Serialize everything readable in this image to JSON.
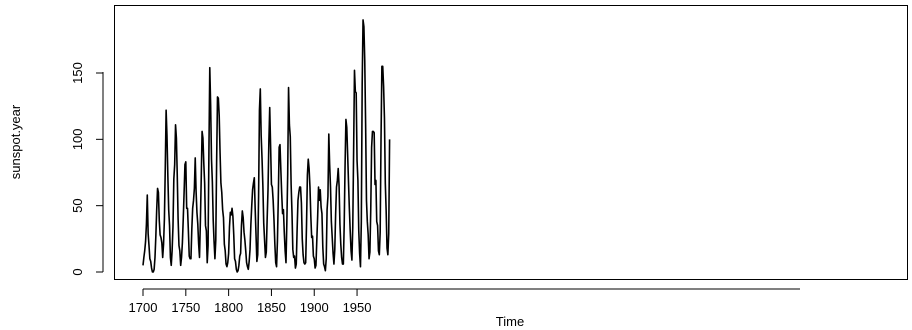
{
  "chart_data": {
    "type": "line",
    "title": "",
    "xlabel": "Time",
    "ylabel": "sunspot.year",
    "xlim": [
      1700,
      1988
    ],
    "ylim": [
      0,
      190
    ],
    "xticks": [
      1700,
      1750,
      1800,
      1850,
      1900,
      1950
    ],
    "yticks": [
      0,
      50,
      100,
      150
    ],
    "grid": false,
    "series": [
      {
        "x_start": 1700,
        "x_step": 1,
        "values": [
          5,
          11,
          16,
          23,
          36,
          58,
          29,
          20,
          10,
          8,
          3,
          0,
          0,
          2,
          11,
          27,
          47,
          63,
          60,
          39,
          28,
          26,
          22,
          11,
          21,
          40,
          78,
          122,
          103,
          73,
          47,
          35,
          11,
          5,
          16,
          34,
          70,
          81,
          111,
          101,
          73,
          40,
          20,
          16,
          5,
          11,
          22,
          40,
          60,
          81,
          83,
          48,
          48,
          31,
          12,
          10,
          10,
          32,
          48,
          54,
          63,
          86,
          61,
          45,
          36,
          21,
          11,
          38,
          70,
          106,
          101,
          82,
          67,
          35,
          31,
          7,
          20,
          92,
          154,
          126,
          85,
          68,
          39,
          23,
          10,
          24,
          83,
          132,
          131,
          118,
          90,
          67,
          60,
          47,
          41,
          21,
          16,
          6,
          4,
          7,
          14,
          34,
          45,
          43,
          48,
          42,
          28,
          10,
          8,
          2,
          0,
          1,
          5,
          12,
          14,
          35,
          46,
          41,
          30,
          24,
          16,
          7,
          4,
          2,
          8,
          17,
          36,
          50,
          62,
          67,
          71,
          48,
          28,
          8,
          13,
          57,
          122,
          138,
          103,
          86,
          65,
          37,
          24,
          11,
          15,
          40,
          62,
          98,
          124,
          96,
          66,
          64,
          54,
          39,
          21,
          7,
          4,
          23,
          55,
          94,
          96,
          77,
          59,
          44,
          47,
          30,
          16,
          7,
          37,
          74,
          139,
          111,
          102,
          66,
          45,
          17,
          11,
          12,
          3,
          6,
          32,
          54,
          60,
          64,
          64,
          52,
          25,
          13,
          7,
          6,
          7,
          36,
          73,
          85,
          78,
          64,
          42,
          26,
          27,
          12,
          10,
          3,
          5,
          24,
          42,
          64,
          54,
          62,
          49,
          44,
          19,
          6,
          4,
          1,
          10,
          47,
          57,
          104,
          81,
          64,
          38,
          26,
          14,
          6,
          17,
          44,
          64,
          69,
          78,
          65,
          36,
          21,
          11,
          6,
          6,
          36,
          80,
          115,
          109,
          89,
          68,
          48,
          31,
          16,
          9,
          34,
          92,
          152,
          136,
          135,
          84,
          69,
          31,
          14,
          4,
          38,
          142,
          190,
          185,
          159,
          112,
          54,
          38,
          28,
          10,
          15,
          47,
          94,
          106,
          106,
          105,
          66,
          69,
          38,
          35,
          16,
          13,
          30,
          100,
          155,
          155,
          140,
          116,
          67,
          46,
          18,
          13,
          29,
          100
        ]
      }
    ]
  }
}
